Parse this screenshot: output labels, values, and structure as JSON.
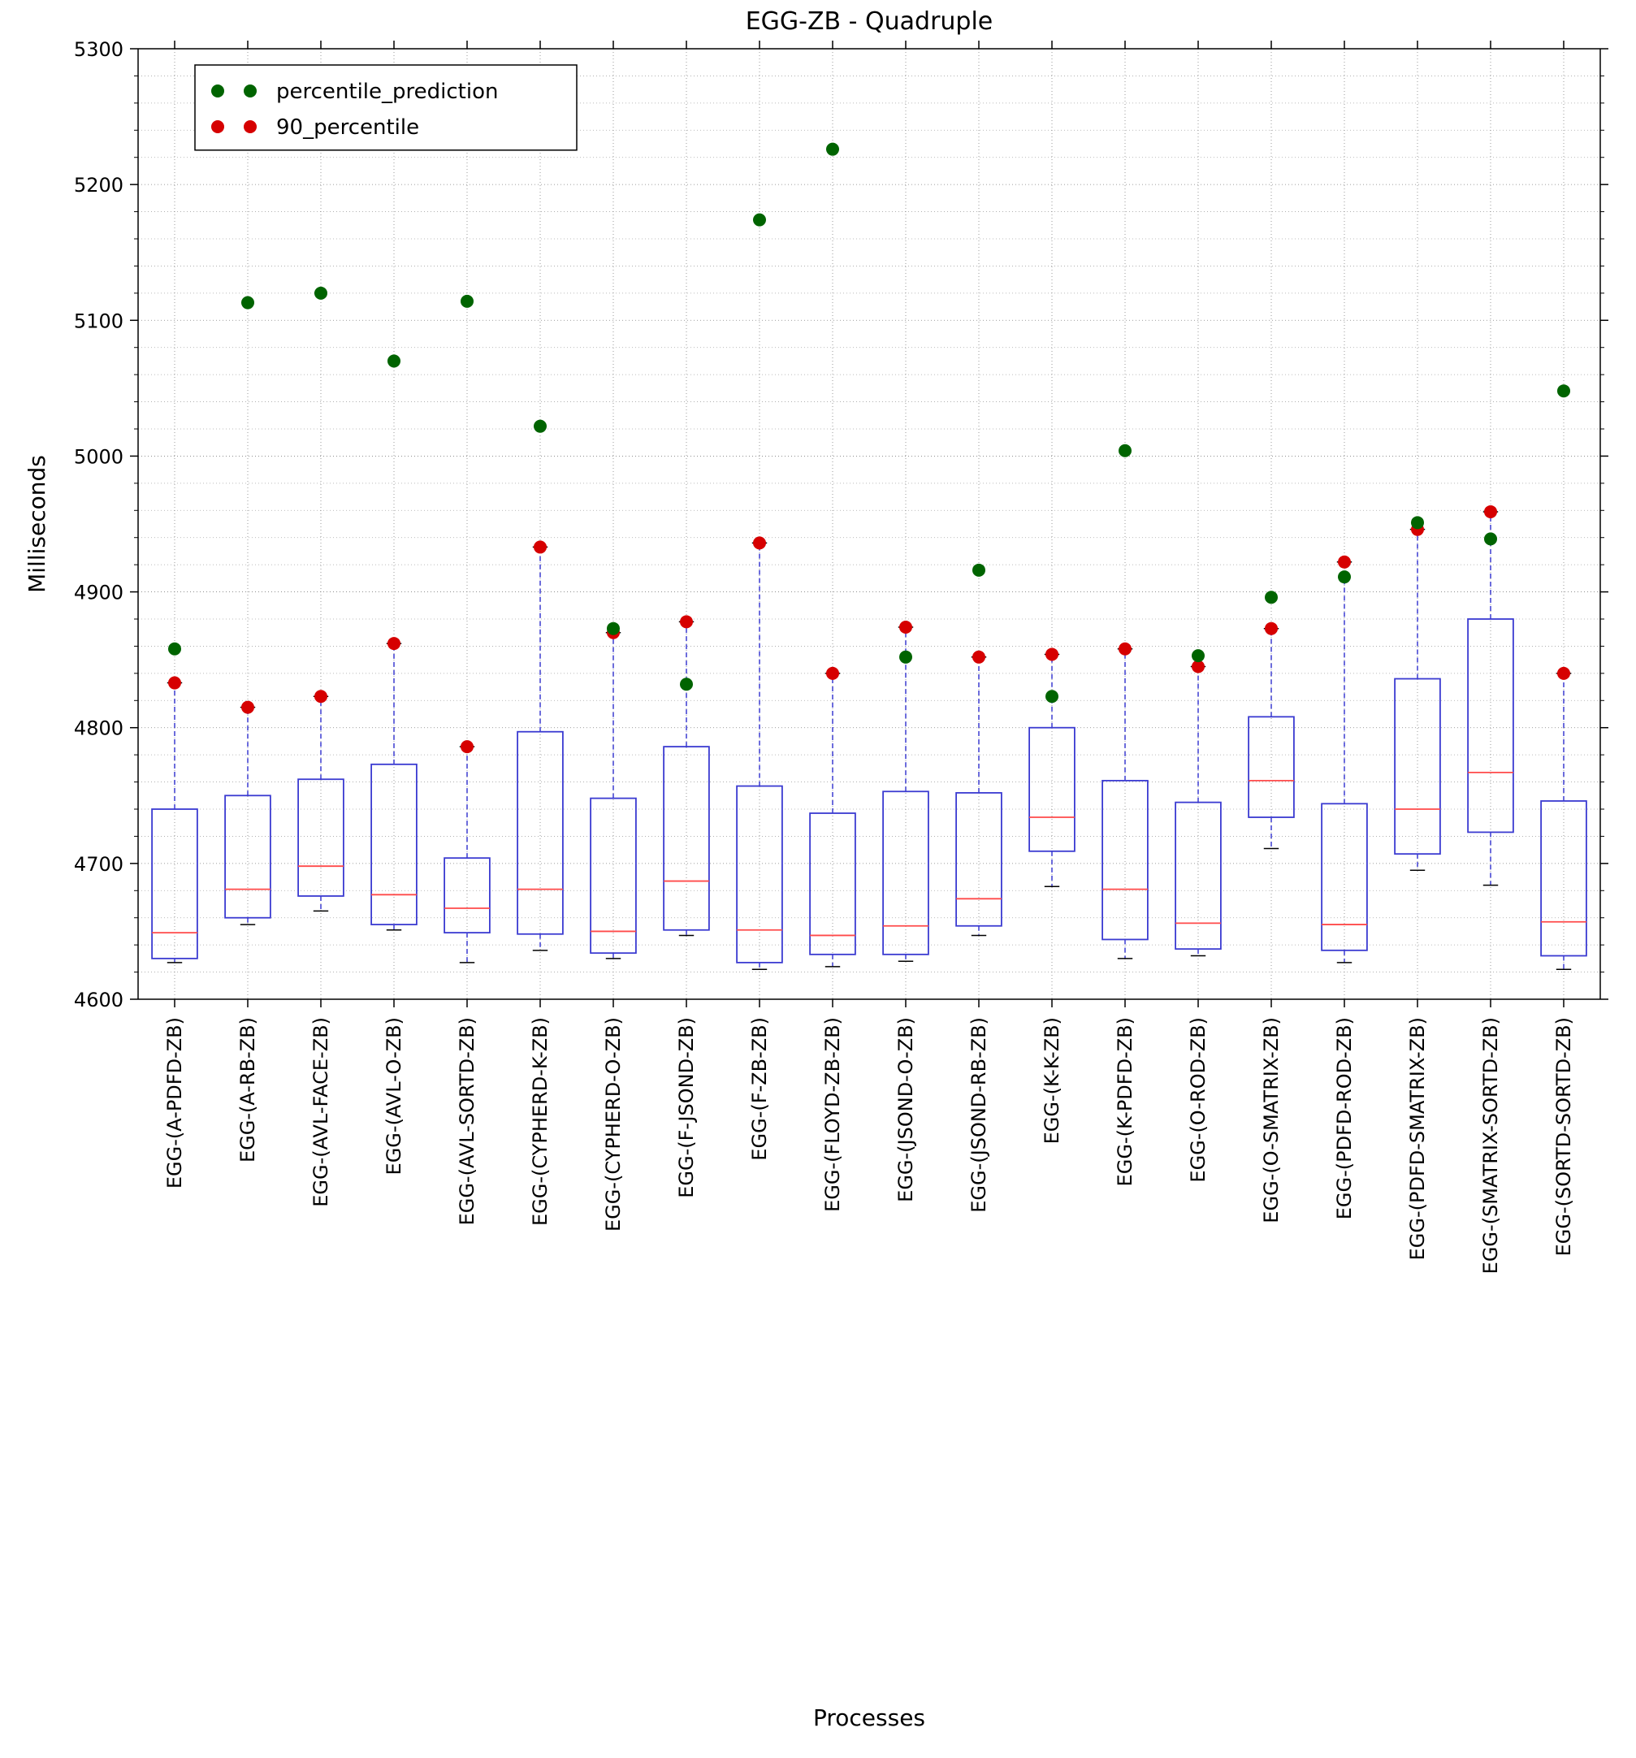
{
  "chart": {
    "type": "boxplot",
    "title": "EGG-ZB - Quadruple",
    "title_fontsize": 30,
    "xlabel": "Processes",
    "ylabel": "Milliseconds",
    "label_fontsize": 28,
    "tick_fontsize": 24,
    "background_color": "#ffffff",
    "grid_color": "#7f7f7f",
    "grid_dash": "1 3",
    "axis_color": "#000000",
    "box_edge_color": "#3b3bd1",
    "box_fill": "none",
    "median_color": "#ff4a4a",
    "whisker_color": "#3b3bd1",
    "whisker_dash": "6 4",
    "cap_color": "#000000",
    "ylim": [
      4600,
      5300
    ],
    "ytick_step": 100,
    "yticks": [
      4600,
      4700,
      4800,
      4900,
      5000,
      5100,
      5200,
      5300
    ],
    "minor_step": 20,
    "legend": {
      "items": [
        {
          "label": "percentile_prediction",
          "color": "#006400"
        },
        {
          "label": "90_percentile",
          "color": "#d60000"
        }
      ],
      "box_edge": "#000000",
      "box_fill": "#ffffff"
    },
    "categories": [
      "EGG-(A-PDFD-ZB)",
      "EGG-(A-RB-ZB)",
      "EGG-(AVL-FACE-ZB)",
      "EGG-(AVL-O-ZB)",
      "EGG-(AVL-SORTD-ZB)",
      "EGG-(CYPHERD-K-ZB)",
      "EGG-(CYPHERD-O-ZB)",
      "EGG-(F-JSOND-ZB)",
      "EGG-(F-ZB-ZB)",
      "EGG-(FLOYD-ZB-ZB)",
      "EGG-(JSOND-O-ZB)",
      "EGG-(JSOND-RB-ZB)",
      "EGG-(K-K-ZB)",
      "EGG-(K-PDFD-ZB)",
      "EGG-(O-ROD-ZB)",
      "EGG-(O-SMATRIX-ZB)",
      "EGG-(PDFD-ROD-ZB)",
      "EGG-(PDFD-SMATRIX-ZB)",
      "EGG-(SMATRIX-SORTD-ZB)",
      "EGG-(SORTD-SORTD-ZB)"
    ],
    "boxes": [
      {
        "wlow": 4627,
        "q1": 4630,
        "med": 4649,
        "q3": 4740,
        "whigh": 4833
      },
      {
        "wlow": 4655,
        "q1": 4660,
        "med": 4681,
        "q3": 4750,
        "whigh": 4815
      },
      {
        "wlow": 4665,
        "q1": 4676,
        "med": 4698,
        "q3": 4762,
        "whigh": 4823
      },
      {
        "wlow": 4651,
        "q1": 4655,
        "med": 4677,
        "q3": 4773,
        "whigh": 4862
      },
      {
        "wlow": 4627,
        "q1": 4649,
        "med": 4667,
        "q3": 4704,
        "whigh": 4786
      },
      {
        "wlow": 4636,
        "q1": 4648,
        "med": 4681,
        "q3": 4797,
        "whigh": 4933
      },
      {
        "wlow": 4630,
        "q1": 4634,
        "med": 4650,
        "q3": 4748,
        "whigh": 4870
      },
      {
        "wlow": 4647,
        "q1": 4651,
        "med": 4687,
        "q3": 4786,
        "whigh": 4878
      },
      {
        "wlow": 4622,
        "q1": 4627,
        "med": 4651,
        "q3": 4757,
        "whigh": 4936
      },
      {
        "wlow": 4624,
        "q1": 4633,
        "med": 4647,
        "q3": 4737,
        "whigh": 4840
      },
      {
        "wlow": 4628,
        "q1": 4633,
        "med": 4654,
        "q3": 4753,
        "whigh": 4874
      },
      {
        "wlow": 4647,
        "q1": 4654,
        "med": 4674,
        "q3": 4752,
        "whigh": 4852
      },
      {
        "wlow": 4683,
        "q1": 4709,
        "med": 4734,
        "q3": 4800,
        "whigh": 4854
      },
      {
        "wlow": 4630,
        "q1": 4644,
        "med": 4681,
        "q3": 4761,
        "whigh": 4858
      },
      {
        "wlow": 4632,
        "q1": 4637,
        "med": 4656,
        "q3": 4745,
        "whigh": 4845
      },
      {
        "wlow": 4711,
        "q1": 4734,
        "med": 4761,
        "q3": 4808,
        "whigh": 4873
      },
      {
        "wlow": 4627,
        "q1": 4636,
        "med": 4655,
        "q3": 4744,
        "whigh": 4922
      },
      {
        "wlow": 4695,
        "q1": 4707,
        "med": 4740,
        "q3": 4836,
        "whigh": 4946
      },
      {
        "wlow": 4684,
        "q1": 4723,
        "med": 4767,
        "q3": 4880,
        "whigh": 4959
      },
      {
        "wlow": 4622,
        "q1": 4632,
        "med": 4657,
        "q3": 4746,
        "whigh": 4840
      }
    ],
    "points_prediction_color": "#006400",
    "points_90_color": "#d60000",
    "points_prediction": [
      4858,
      5113,
      5120,
      5070,
      5114,
      5022,
      4873,
      4832,
      5174,
      5226,
      4852,
      4916,
      4823,
      5004,
      4853,
      4896,
      4911,
      4951,
      4939,
      5048
    ],
    "points_90": [
      4833,
      4815,
      4823,
      4862,
      4786,
      4933,
      4870,
      4878,
      4936,
      4840,
      4874,
      4852,
      4854,
      4858,
      4845,
      4873,
      4922,
      4946,
      4959,
      4840
    ],
    "point_radius": 8
  }
}
